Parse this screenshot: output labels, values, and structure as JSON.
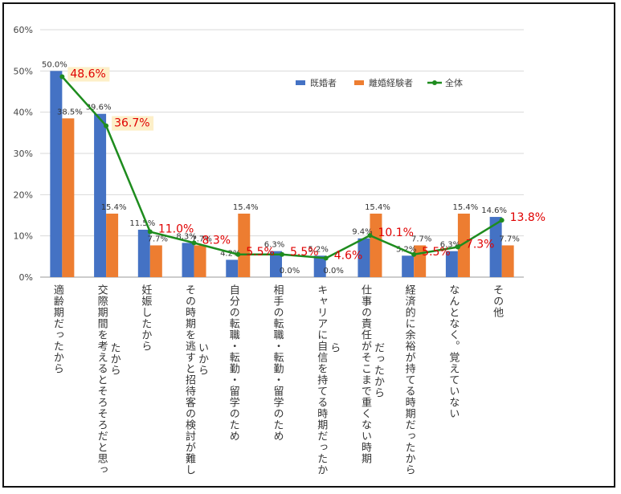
{
  "chart_data": {
    "type": "bar",
    "categories": [
      [
        "適齢期だったから"
      ],
      [
        "交際期間を考えるとそろそろだと思っ",
        "たから"
      ],
      [
        "妊娠したから"
      ],
      [
        "その時期を逃すと招待客の検討が難し",
        "いから"
      ],
      [
        "自分の転職・転勤・留学のため"
      ],
      [
        "相手の転職・転勤・留学のため"
      ],
      [
        "キャリアに自信を持てる時期だったか",
        "ら"
      ],
      [
        "仕事の責任がそこまで重くない時期",
        "だったから"
      ],
      [
        "経済的に余裕が持てる時期だったから"
      ],
      [
        "なんとなく。覚えていない"
      ],
      [
        "その他"
      ]
    ],
    "series": [
      {
        "name": "既婚者",
        "type": "bar",
        "color": "#4472c4",
        "values": [
          50.0,
          39.6,
          11.5,
          8.3,
          4.2,
          6.3,
          5.2,
          9.4,
          5.2,
          6.3,
          14.6
        ],
        "labels": [
          "50.0%",
          "39.6%",
          "11.5%",
          "8.3%",
          "4.2%",
          "6.3%",
          "5.2%",
          "9.4%",
          "5.2%",
          "6.3%",
          "14.6%"
        ]
      },
      {
        "name": "離婚経験者",
        "type": "bar",
        "color": "#ed7d31",
        "values": [
          38.5,
          15.4,
          7.7,
          7.7,
          15.4,
          0.0,
          0.0,
          15.4,
          7.7,
          15.4,
          7.7
        ],
        "labels": [
          "38.5%",
          "15.4%",
          "7.7%",
          "7.7%",
          "15.4%",
          "0.0%",
          "0.0%",
          "15.4%",
          "7.7%",
          "15.4%",
          "7.7%"
        ]
      },
      {
        "name": "全体",
        "type": "line",
        "color": "#1e8c1e",
        "values": [
          48.6,
          36.7,
          11.0,
          8.3,
          5.5,
          5.5,
          4.6,
          10.1,
          5.5,
          7.3,
          13.8
        ],
        "labels": [
          "48.6%",
          "36.7%",
          "11.0%",
          "8.3%",
          "5.5%",
          "5.5%",
          "4.6%",
          "10.1%",
          "5.5%",
          "7.3%",
          "13.8%"
        ],
        "label_color": "#e00000",
        "highlighted": [
          0,
          1
        ],
        "highlight_color": "#fdefc8"
      }
    ],
    "ylim": [
      0,
      60
    ],
    "yticks": [
      "0%",
      "10%",
      "20%",
      "30%",
      "40%",
      "50%",
      "60%"
    ],
    "grid": true,
    "legend": "top-right"
  }
}
